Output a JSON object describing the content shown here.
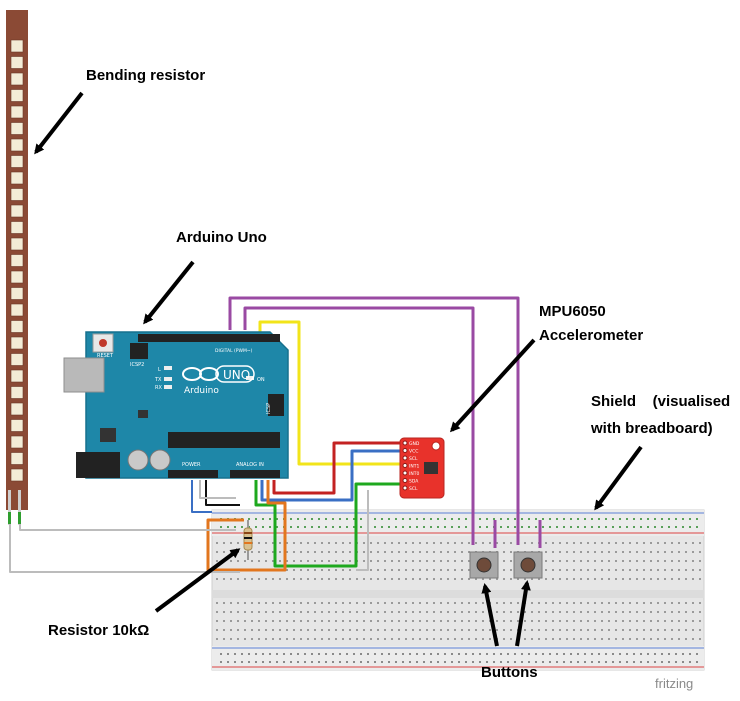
{
  "labels": {
    "bending_resistor": "Bending resistor",
    "arduino_uno": "Arduino Uno",
    "mpu6050_line1": "MPU6050",
    "mpu6050_line2": "Accelerometer",
    "shield_line1": "Shield    (visualised",
    "shield_line2": "with breadboard)",
    "resistor": "Resistor 10kΩ",
    "buttons": "Buttons"
  },
  "board": {
    "name": "Arduino",
    "model": "UNO",
    "reset_label": "RESET",
    "icsp2_label": "ICSP2",
    "icsp_label": "ICSP",
    "led_l": "L",
    "led_tx": "TX",
    "led_rx": "RX",
    "led_on": "ON",
    "digital_label": "DIGITAL (PWM~)",
    "power_label": "POWER",
    "analog_label": "ANALOG IN"
  },
  "sensor": {
    "pins": [
      "GND",
      "VCC",
      "SCL",
      "INT1",
      "INT0",
      "SDA",
      "SCL"
    ]
  },
  "watermark": "fritzing",
  "colors": {
    "board": "#1e87a8",
    "board_dark": "#16708d",
    "flex": "#8b4a35",
    "sensor": "#e8322b",
    "wire_purple": "#9a4aa3",
    "wire_yellow": "#f2e41a",
    "wire_red": "#c32222",
    "wire_blue": "#3a6fc4",
    "wire_green": "#1ea81e",
    "wire_orange": "#e2761e",
    "wire_gray": "#bcbcbc",
    "arrow": "#000000"
  }
}
